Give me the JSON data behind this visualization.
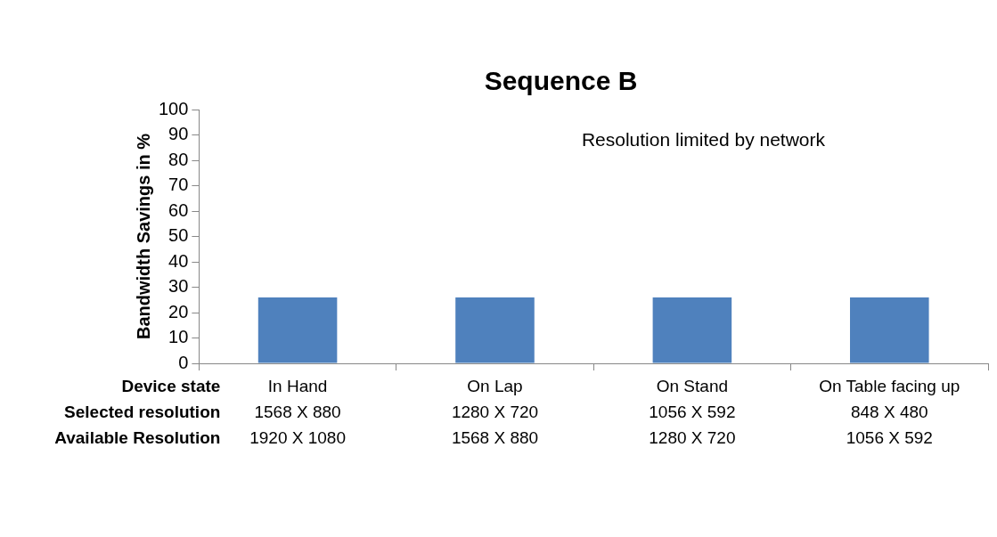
{
  "chart_data": {
    "type": "bar",
    "title": "Sequence B",
    "ylabel": "Bandwidth Savings in %",
    "categories": [
      "In Hand\n1568 X 880\n1920 X 1080",
      "On Lap\n1280 X 720\n1568 X 880",
      "On Stand\n1056 X 592\n1280 X 720",
      "On Table facing up\n848 X 480\n1056 X 592"
    ],
    "values": [
      26,
      26,
      26,
      26
    ],
    "color": "#4f81bd",
    "ylim": [
      0,
      100
    ],
    "yticks": [
      0,
      10,
      20,
      30,
      40,
      50,
      60,
      70,
      80,
      90,
      100
    ],
    "grid": false,
    "legend": false,
    "annotations": [
      "Resolution limited by network",
      "Device state",
      "Selected resolution",
      "Available Resolution"
    ]
  }
}
